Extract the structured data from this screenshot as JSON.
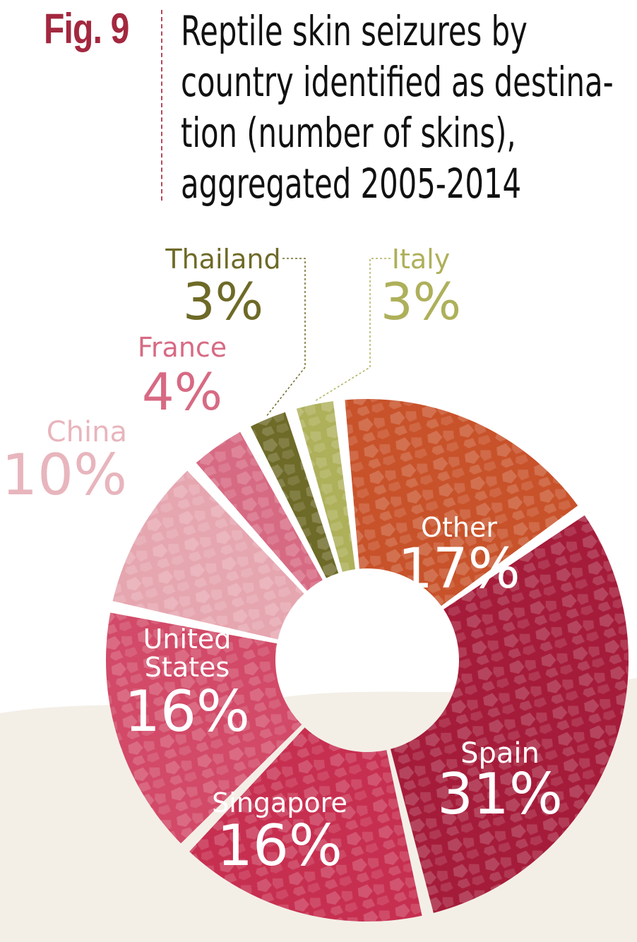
{
  "figure": {
    "label": "Fig. 9",
    "title_lines": [
      "Reptile skin seizures by",
      "country identified as destina-",
      "tion (number of skins),",
      "aggregated 2005-2014"
    ]
  },
  "colors": {
    "fig_label": "#a3283f",
    "divider": "#b5475a",
    "background_wash": "#f3efe7"
  },
  "chart_data": {
    "type": "pie",
    "variant": "donut",
    "title": "Reptile skin seizures by country identified as destination (number of skins), aggregated 2005-2014",
    "unit": "%",
    "slices": [
      {
        "label": "Italy",
        "value": 3,
        "value_label": "3%",
        "color": "#aeb05a"
      },
      {
        "label": "Other",
        "value": 17,
        "value_label": "17%",
        "color": "#c8522a"
      },
      {
        "label": "Spain",
        "value": 31,
        "value_label": "31%",
        "color": "#a51c3a"
      },
      {
        "label": "Singapore",
        "value": 16,
        "value_label": "16%",
        "color": "#c72f50"
      },
      {
        "label": "United States",
        "value": 16,
        "value_label": "16%",
        "color": "#d24a68"
      },
      {
        "label": "China",
        "value": 10,
        "value_label": "10%",
        "color": "#e6a6b0"
      },
      {
        "label": "France",
        "value": 4,
        "value_label": "4%",
        "color": "#d76a83"
      },
      {
        "label": "Thailand",
        "value": 3,
        "value_label": "3%",
        "color": "#6e6a27"
      }
    ],
    "legend": "none"
  }
}
